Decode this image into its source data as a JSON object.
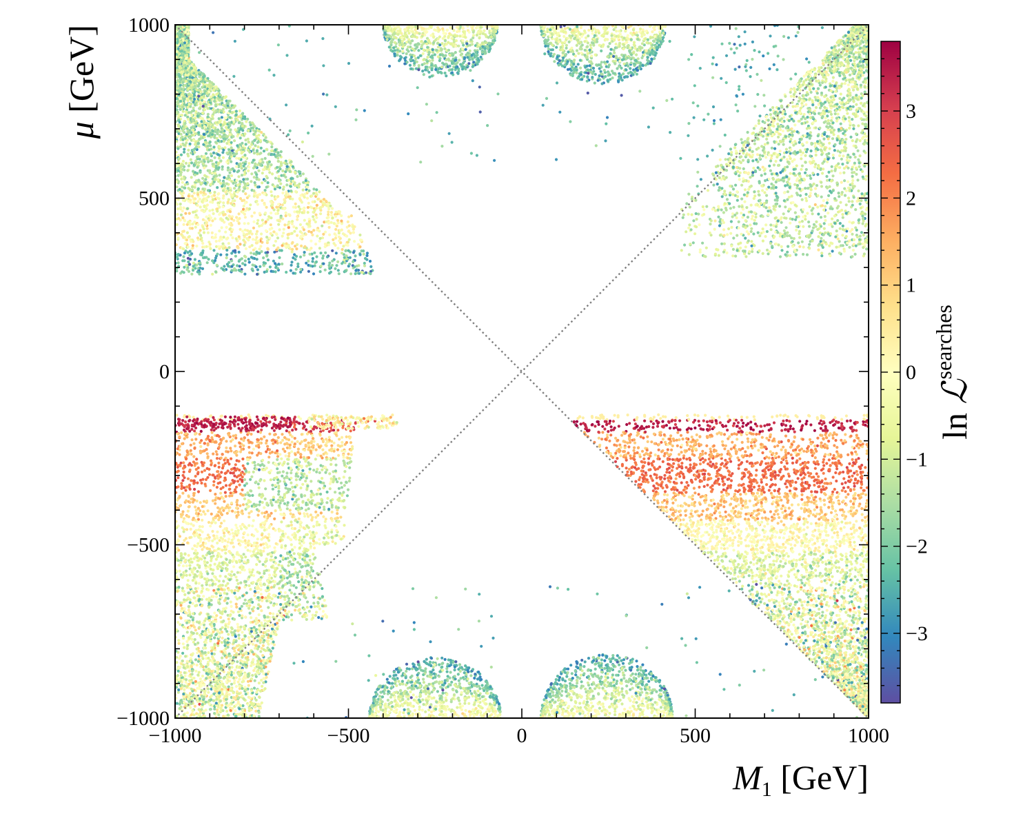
{
  "chart_data": {
    "type": "scatter",
    "title": "",
    "xlabel": {
      "symbol": "M",
      "subscript": "1",
      "unit": "[GeV]"
    },
    "ylabel": {
      "symbol": "μ",
      "unit": "[GeV]"
    },
    "xlim": [
      -1000,
      1000
    ],
    "ylim": [
      -1000,
      1000
    ],
    "x_ticks": [
      -1000,
      -500,
      0,
      500,
      1000
    ],
    "y_ticks": [
      -1000,
      -500,
      0,
      500,
      1000
    ],
    "x_tick_labels": [
      "−1000",
      "−500",
      "0",
      "500",
      "1000"
    ],
    "y_tick_labels": [
      "−1000",
      "−500",
      "0",
      "500",
      "1000"
    ],
    "grid": false,
    "reference_lines": [
      {
        "name": "mu-equals-M1",
        "x": [
          -1000,
          1000
        ],
        "y": [
          -1000,
          1000
        ],
        "style": "dotted",
        "color": "#808080"
      },
      {
        "name": "mu-equals-minus-M1",
        "x": [
          -1000,
          1000
        ],
        "y": [
          1000,
          -1000
        ],
        "style": "dotted",
        "color": "#808080"
      }
    ],
    "colorbar": {
      "label": {
        "prefix": "ln",
        "symbol": "ℒ",
        "superscript": "searches"
      },
      "range": [
        -3.8,
        3.8
      ],
      "ticks": [
        -3,
        -2,
        -1,
        0,
        1,
        2,
        3
      ],
      "tick_labels": [
        "−3",
        "−2",
        "−1",
        "0",
        "1",
        "2",
        "3"
      ],
      "colormap": "Spectral_r",
      "colormap_stops": [
        "#5e4fa2",
        "#3288bd",
        "#66c2a5",
        "#abdda4",
        "#e6f598",
        "#ffffbf",
        "#fee08b",
        "#fdae61",
        "#f46d43",
        "#d53e4f",
        "#9e0142"
      ]
    },
    "series": [
      {
        "name": "upper-left-wedge",
        "description_region": {
          "x": [
            -1000,
            -400
          ],
          "y": [
            280,
            1000
          ]
        },
        "value_range": [
          -3,
          0.5
        ]
      },
      {
        "name": "upper-right-wedge",
        "description_region": {
          "x": [
            450,
            1000
          ],
          "y": [
            330,
            1000
          ]
        },
        "value_range": [
          -3,
          0
        ]
      },
      {
        "name": "top-left-lobe",
        "description_region": {
          "x": [
            -380,
            -80
          ],
          "y": [
            850,
            1000
          ]
        },
        "value_range": [
          -3,
          0
        ]
      },
      {
        "name": "top-right-lobe",
        "description_region": {
          "x": [
            60,
            440
          ],
          "y": [
            830,
            1000
          ]
        },
        "value_range": [
          -3,
          0
        ]
      },
      {
        "name": "lower-left-band",
        "description_region": {
          "x": [
            -1000,
            -360
          ],
          "y": [
            -1000,
            -125
          ]
        },
        "value_range": [
          -3,
          3.6
        ]
      },
      {
        "name": "lower-right-band",
        "description_region": {
          "x": [
            140,
            1000
          ],
          "y": [
            -1000,
            -125
          ]
        },
        "value_range": [
          -3,
          3.6
        ]
      },
      {
        "name": "bottom-left-lobe",
        "description_region": {
          "x": [
            -430,
            -60
          ],
          "y": [
            -1000,
            -830
          ]
        },
        "value_range": [
          -3,
          0
        ]
      },
      {
        "name": "bottom-right-lobe",
        "description_region": {
          "x": [
            60,
            420
          ],
          "y": [
            -1000,
            -820
          ]
        },
        "value_range": [
          -3,
          0
        ]
      }
    ],
    "highlighted_band": {
      "mu": -150,
      "value": 3.5,
      "note": "maximum ln L at mu ≈ -150 GeV"
    },
    "secondary_band": {
      "mu": -320,
      "value": 2.4
    }
  }
}
